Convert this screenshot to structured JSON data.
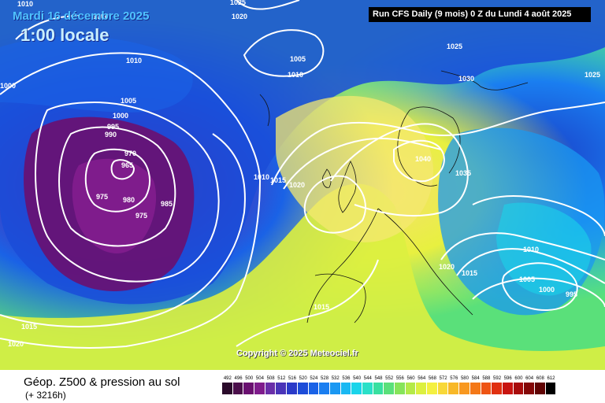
{
  "header": {
    "date": "Mardi 16 décembre 2025",
    "time": "1:00 locale",
    "run": "Run CFS Daily (9 mois) 0 Z du Lundi 4 août 2025"
  },
  "copyright": "Copyright © 2025 Meteociel.fr",
  "footer": {
    "title": "Géop. Z500 & pression au sol",
    "subtitle": "(+ 3216h)"
  },
  "legend": {
    "values": [
      "492",
      "496",
      "500",
      "504",
      "508",
      "512",
      "516",
      "520",
      "524",
      "528",
      "532",
      "536",
      "540",
      "544",
      "548",
      "552",
      "556",
      "560",
      "564",
      "568",
      "572",
      "576",
      "580",
      "584",
      "588",
      "592",
      "596",
      "600",
      "604",
      "608",
      "612"
    ],
    "colors": [
      "#2a0a2a",
      "#4b0f4b",
      "#6a1070",
      "#7f1c8c",
      "#6a2ea8",
      "#4a34b8",
      "#2a3ac8",
      "#1c4cd8",
      "#1a62e6",
      "#1a7ef0",
      "#1a98f2",
      "#1ab8f2",
      "#1ad4ea",
      "#2ae0c8",
      "#38e0a0",
      "#5ae07a",
      "#86e45a",
      "#b4ea48",
      "#dcf040",
      "#f4f040",
      "#f8d838",
      "#f8b828",
      "#f89820",
      "#f47818",
      "#ee5414",
      "#e03010",
      "#c81410",
      "#a80c0c",
      "#840808",
      "#600404",
      "#000000"
    ]
  },
  "isobars": [
    "1010",
    "1020",
    "1025",
    "1005",
    "1010",
    "1025",
    "1030",
    "1025",
    "1010",
    "1005",
    "1000",
    "995",
    "990",
    "970",
    "965",
    "975",
    "980",
    "975",
    "985",
    "1010",
    "1015",
    "1020",
    "1040",
    "1035",
    "1010",
    "1005",
    "1000",
    "995",
    "1020",
    "1015",
    "1015",
    "1015",
    "1020",
    "1000",
    "1000"
  ]
}
